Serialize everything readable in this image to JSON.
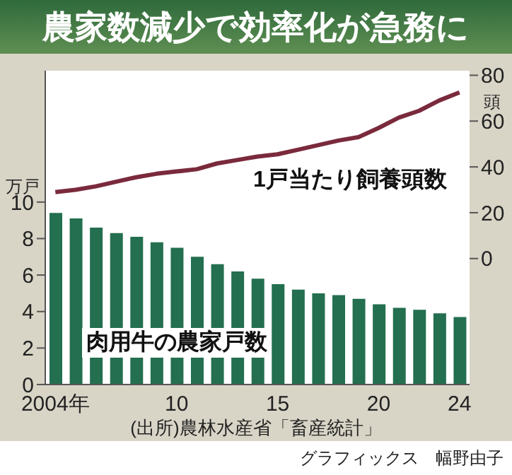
{
  "chart_data": {
    "type": "bar",
    "title": "農家数減少で効率化が急務に",
    "ylabel": "万戸",
    "y2label": "頭",
    "categories": [
      "2004年",
      null,
      null,
      null,
      null,
      null,
      "10",
      null,
      null,
      null,
      null,
      "15",
      null,
      null,
      null,
      null,
      "20",
      null,
      null,
      null,
      "24"
    ],
    "series": [
      {
        "name": "肉用牛の農家戸数",
        "color": "#236f4f",
        "values": [
          9.4,
          9.1,
          8.6,
          8.3,
          8.1,
          7.8,
          7.5,
          7.0,
          6.6,
          6.2,
          5.8,
          5.5,
          5.2,
          5.0,
          4.9,
          4.7,
          4.4,
          4.2,
          4.1,
          3.9,
          3.7
        ]
      },
      {
        "name": "1戸当たり飼養頭数",
        "type": "line",
        "axis": "y2",
        "color": "#7a2a3c",
        "values": [
          29,
          30,
          31.5,
          33.5,
          35.5,
          37,
          38,
          39,
          41.5,
          43,
          44.5,
          45.5,
          47.5,
          49.5,
          51.5,
          53,
          57,
          61.5,
          64.5,
          69,
          72.5
        ]
      }
    ],
    "ylim": [
      0,
      17.2
    ],
    "yticks": [
      0,
      2,
      4,
      6,
      8,
      10
    ],
    "y2lim": [
      -55,
      82
    ],
    "y2ticks": [
      0,
      20,
      40,
      60,
      80
    ],
    "grid": false,
    "marker": "none",
    "annotations": [
      "(出所)農林水産省「畜産統計」",
      "グラフィックス　幅野由子"
    ]
  }
}
